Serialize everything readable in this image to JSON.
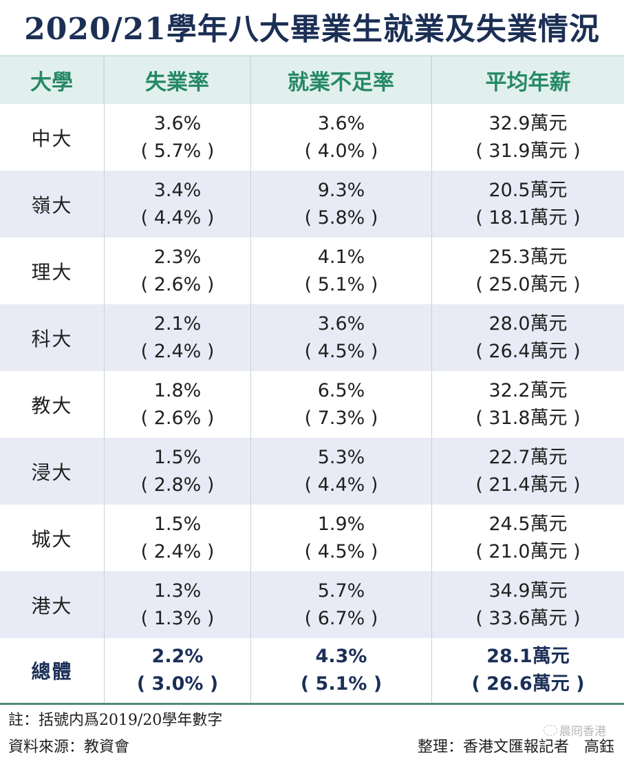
{
  "title": "2020/21學年八大畢業生就業及失業情況",
  "table": {
    "headers": [
      "大學",
      "失業率",
      "就業不足率",
      "平均年薪"
    ],
    "rows": [
      {
        "university": "中大",
        "unemployment": "3.6%",
        "unemployment_prev": "( 5.7% )",
        "underemployment": "3.6%",
        "underemployment_prev": "( 4.0% )",
        "salary": "32.9萬元",
        "salary_prev": "( 31.9萬元 )"
      },
      {
        "university": "嶺大",
        "unemployment": "3.4%",
        "unemployment_prev": "( 4.4% )",
        "underemployment": "9.3%",
        "underemployment_prev": "( 5.8% )",
        "salary": "20.5萬元",
        "salary_prev": "( 18.1萬元 )"
      },
      {
        "university": "理大",
        "unemployment": "2.3%",
        "unemployment_prev": "( 2.6% )",
        "underemployment": "4.1%",
        "underemployment_prev": "( 5.1% )",
        "salary": "25.3萬元",
        "salary_prev": "( 25.0萬元 )"
      },
      {
        "university": "科大",
        "unemployment": "2.1%",
        "unemployment_prev": "( 2.4% )",
        "underemployment": "3.6%",
        "underemployment_prev": "( 4.5% )",
        "salary": "28.0萬元",
        "salary_prev": "( 26.4萬元 )"
      },
      {
        "university": "教大",
        "unemployment": "1.8%",
        "unemployment_prev": "( 2.6% )",
        "underemployment": "6.5%",
        "underemployment_prev": "( 7.3% )",
        "salary": "32.2萬元",
        "salary_prev": "( 31.8萬元 )"
      },
      {
        "university": "浸大",
        "unemployment": "1.5%",
        "unemployment_prev": "( 2.8% )",
        "underemployment": "5.3%",
        "underemployment_prev": "( 4.4% )",
        "salary": "22.7萬元",
        "salary_prev": "( 21.4萬元 )"
      },
      {
        "university": "城大",
        "unemployment": "1.5%",
        "unemployment_prev": "( 2.4% )",
        "underemployment": "1.9%",
        "underemployment_prev": "( 4.5% )",
        "salary": "24.5萬元",
        "salary_prev": "( 21.0萬元 )"
      },
      {
        "university": "港大",
        "unemployment": "1.3%",
        "unemployment_prev": "( 1.3% )",
        "underemployment": "5.7%",
        "underemployment_prev": "( 6.7% )",
        "salary": "34.9萬元",
        "salary_prev": "( 33.6萬元 )"
      }
    ],
    "total": {
      "university": "總體",
      "unemployment": "2.2%",
      "unemployment_prev": "( 3.0% )",
      "underemployment": "4.3%",
      "underemployment_prev": "( 5.1% )",
      "salary": "28.1萬元",
      "salary_prev": "( 26.6萬元 )"
    }
  },
  "footer": {
    "note": "註：括號内爲2019/20學年數字",
    "source": "資料來源：教資會",
    "credit": "整理：香港文匯報記者　高鈺"
  },
  "watermark": {
    "text": "晨冏香港"
  },
  "colors": {
    "title": "#1c2f55",
    "header_text": "#258866",
    "header_bg": "#e2f0ed",
    "alt_row_bg": "#e8ebf5",
    "total_text": "#1b2f57"
  }
}
